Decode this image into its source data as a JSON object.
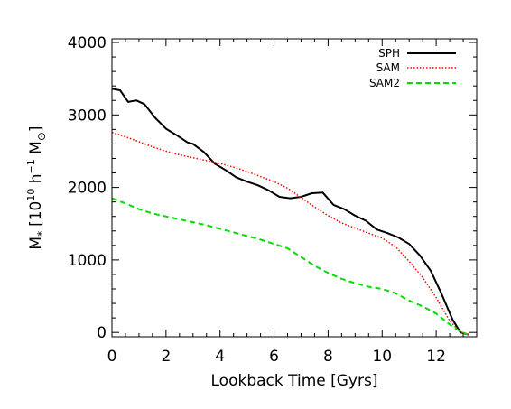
{
  "chart_data": {
    "type": "line",
    "title": "",
    "xlabel": "Lookback Time [Gyrs]",
    "ylabel": {
      "base": "M",
      "base_sub": "*",
      "units_prefix": "[10",
      "pow1": "10",
      "mid": " h",
      "pow2": "−1",
      "units_suffix": " M",
      "suffix_sub": "⊙",
      "close": "]"
    },
    "xlim": [
      0,
      13.5
    ],
    "ylim": [
      -60,
      4050
    ],
    "xticks": [
      0,
      2,
      4,
      6,
      8,
      10,
      12
    ],
    "xtick_labels": [
      "0",
      "2",
      "4",
      "6",
      "8",
      "10",
      "12"
    ],
    "yticks": [
      0,
      1000,
      2000,
      3000,
      4000
    ],
    "ytick_labels": [
      "0",
      "1000",
      "2000",
      "3000",
      "4000"
    ],
    "grid": false,
    "legend_position": "top-right",
    "series": [
      {
        "name": "SPH",
        "color": "#000000",
        "dash": "solid",
        "x": [
          0,
          0.3,
          0.6,
          0.9,
          1.2,
          1.6,
          2.0,
          2.4,
          2.8,
          3.0,
          3.4,
          3.8,
          4.2,
          4.6,
          5.0,
          5.4,
          5.8,
          6.2,
          6.6,
          7.0,
          7.4,
          7.8,
          8.2,
          8.6,
          9.0,
          9.4,
          9.8,
          10.2,
          10.6,
          11.0,
          11.4,
          11.8,
          12.2,
          12.6,
          12.9,
          13.2
        ],
        "y": [
          3360,
          3340,
          3180,
          3200,
          3150,
          2960,
          2810,
          2720,
          2620,
          2600,
          2490,
          2330,
          2240,
          2140,
          2080,
          2030,
          1960,
          1870,
          1850,
          1870,
          1920,
          1930,
          1760,
          1700,
          1610,
          1540,
          1420,
          1370,
          1310,
          1220,
          1060,
          850,
          530,
          180,
          0,
          -30
        ]
      },
      {
        "name": "SAM",
        "color": "#ff0000",
        "dash": "dotted",
        "x": [
          0,
          0.5,
          1.0,
          1.5,
          2.0,
          2.5,
          3.0,
          3.5,
          4.0,
          4.5,
          5.0,
          5.5,
          6.0,
          6.5,
          7.0,
          7.5,
          8.0,
          8.5,
          9.0,
          9.5,
          10.0,
          10.5,
          11.0,
          11.5,
          12.0,
          12.5,
          12.9,
          13.2
        ],
        "y": [
          2760,
          2700,
          2630,
          2560,
          2500,
          2450,
          2410,
          2370,
          2330,
          2280,
          2220,
          2150,
          2080,
          1990,
          1860,
          1730,
          1610,
          1510,
          1440,
          1370,
          1300,
          1180,
          980,
          760,
          480,
          160,
          0,
          -30
        ]
      },
      {
        "name": "SAM2",
        "color": "#00dd00",
        "dash": "dashed",
        "x": [
          0,
          0.5,
          1.0,
          1.5,
          2.0,
          2.5,
          3.0,
          3.5,
          4.0,
          4.5,
          5.0,
          5.5,
          6.0,
          6.5,
          7.0,
          7.5,
          8.0,
          8.5,
          9.0,
          9.5,
          10.0,
          10.5,
          11.0,
          11.5,
          12.0,
          12.5,
          12.9,
          13.2
        ],
        "y": [
          1850,
          1780,
          1700,
          1640,
          1600,
          1560,
          1520,
          1480,
          1430,
          1380,
          1330,
          1280,
          1220,
          1160,
          1040,
          920,
          820,
          740,
          680,
          630,
          600,
          540,
          440,
          360,
          260,
          110,
          10,
          -30
        ]
      }
    ]
  }
}
